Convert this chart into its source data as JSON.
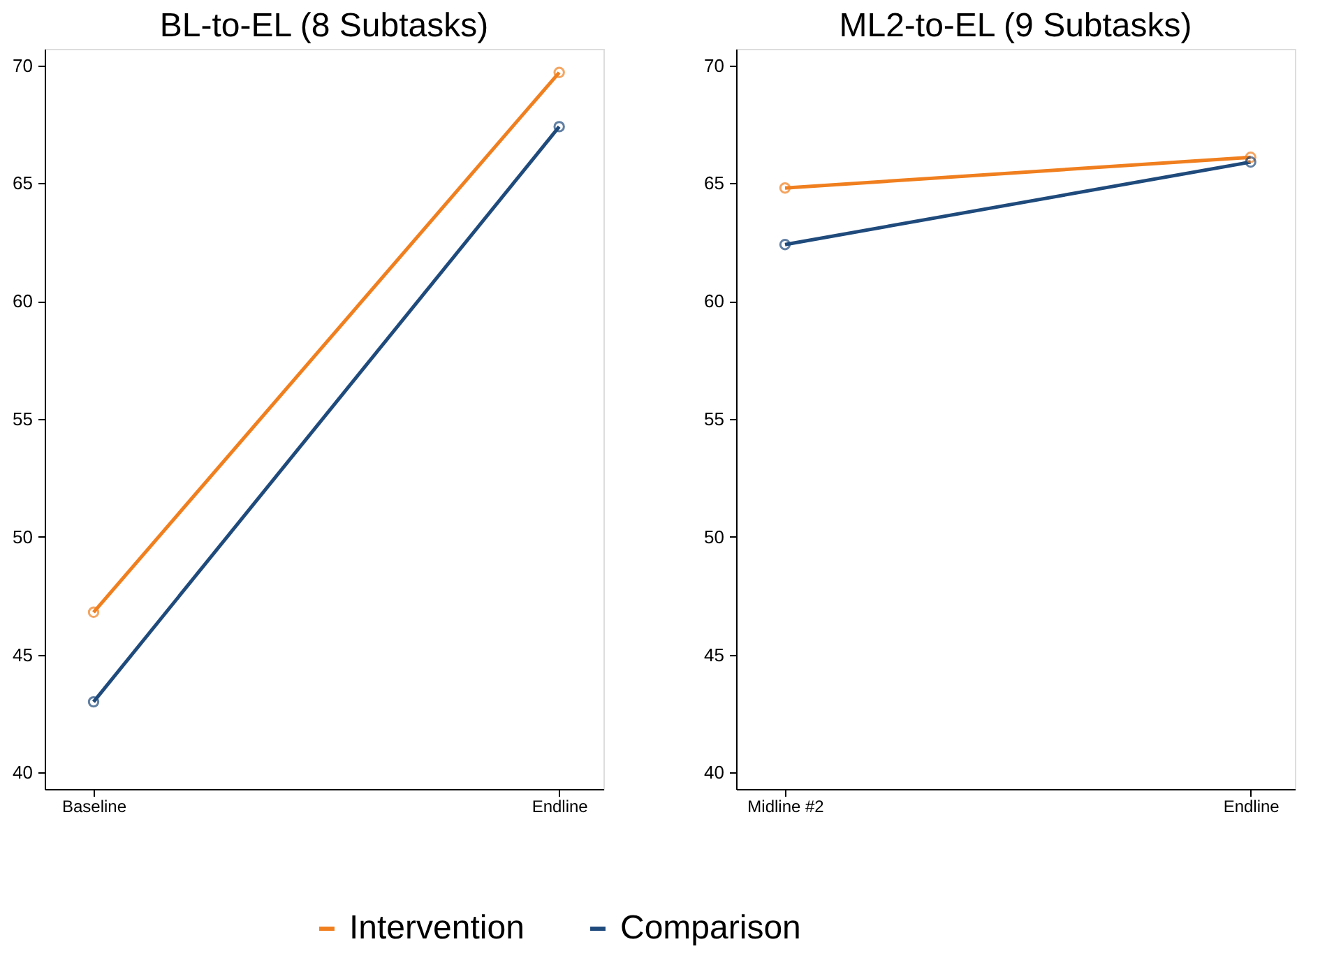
{
  "chart_data": [
    {
      "type": "line",
      "title": "BL-to-EL (8 Subtasks)",
      "categories": [
        "Baseline",
        "Endline"
      ],
      "ylim": [
        39.3,
        70.7
      ],
      "yticks": [
        40,
        45,
        50,
        55,
        60,
        65,
        70
      ],
      "grid": false,
      "legend": "bottom",
      "marker": "circle",
      "line_style": "solid",
      "series": [
        {
          "name": "Intervention",
          "color": "#f07f1f",
          "values": [
            46.8,
            69.7
          ]
        },
        {
          "name": "Comparison",
          "color": "#1f4a7c",
          "values": [
            43.0,
            67.4
          ]
        }
      ]
    },
    {
      "type": "line",
      "title": "ML2-to-EL (9 Subtasks)",
      "categories": [
        "Midline #2",
        "Endline"
      ],
      "ylim": [
        39.3,
        70.7
      ],
      "yticks": [
        40,
        45,
        50,
        55,
        60,
        65,
        70
      ],
      "grid": false,
      "legend": "bottom",
      "marker": "circle",
      "line_style": "solid",
      "series": [
        {
          "name": "Intervention",
          "color": "#f07f1f",
          "values": [
            64.8,
            66.1
          ]
        },
        {
          "name": "Comparison",
          "color": "#1f4a7c",
          "values": [
            62.4,
            65.9
          ]
        }
      ]
    }
  ]
}
